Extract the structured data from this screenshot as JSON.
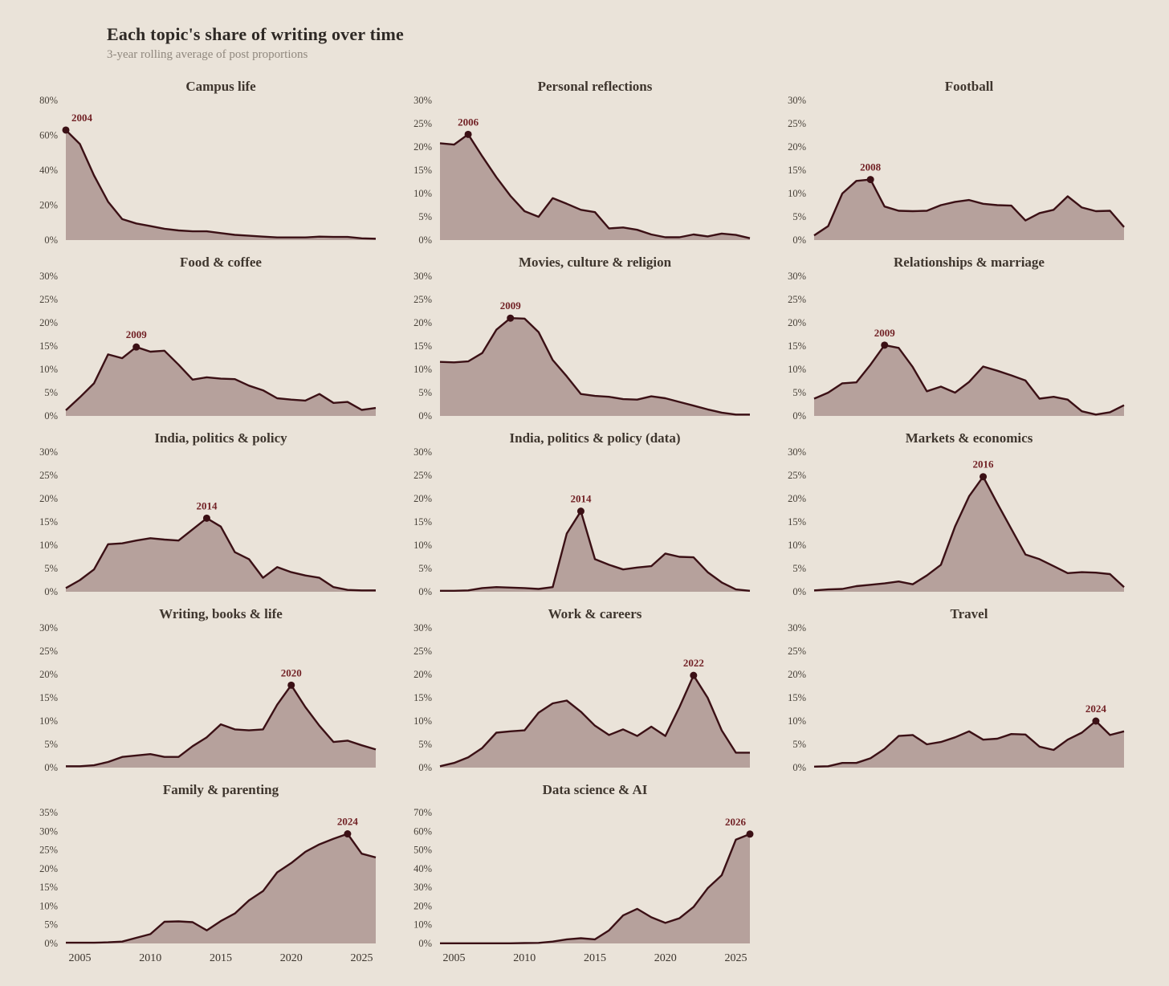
{
  "page": {
    "title": "Each topic's share of writing over time",
    "subtitle": "3-year rolling average of post proportions"
  },
  "style": {
    "background": "#eae3d9",
    "area_fill": "#b6a19c",
    "line_color": "#3b1015",
    "peak_dot_color": "#3b1015",
    "peak_label_color": "#722226"
  },
  "axis": {
    "x_start_year": 2004,
    "x_end_year": 2026,
    "x_tick_labels": [
      2005,
      2010,
      2015,
      2020,
      2025
    ],
    "y_unit": "%"
  },
  "chart_data": [
    {
      "type": "area",
      "title": "Campus life",
      "ylim": [
        0,
        80
      ],
      "yticks": [
        0,
        20,
        40,
        60,
        80
      ],
      "peak": {
        "year": 2004,
        "label": "2004",
        "value": 63
      },
      "values": [
        63,
        55,
        37,
        22,
        12,
        9.5,
        8,
        6.5,
        5.5,
        5,
        5,
        4,
        3,
        2.5,
        2,
        1.5,
        1.5,
        1.5,
        2,
        1.8,
        1.8,
        1,
        0.8
      ],
      "show_x_labels": false
    },
    {
      "type": "area",
      "title": "Personal reflections",
      "ylim": [
        0,
        30
      ],
      "yticks": [
        0,
        5,
        10,
        15,
        20,
        25,
        30
      ],
      "peak": {
        "year": 2006,
        "label": "2006",
        "value": 22.7
      },
      "values": [
        20.8,
        20.5,
        22.7,
        18,
        13.5,
        9.5,
        6.2,
        5,
        9,
        7.8,
        6.5,
        6,
        2.5,
        2.7,
        2.2,
        1.2,
        0.6,
        0.6,
        1.2,
        0.8,
        1.4,
        1.1,
        0.4
      ],
      "show_x_labels": false
    },
    {
      "type": "area",
      "title": "Football",
      "ylim": [
        0,
        30
      ],
      "yticks": [
        0,
        5,
        10,
        15,
        20,
        25,
        30
      ],
      "peak": {
        "year": 2008,
        "label": "2008",
        "value": 13
      },
      "values": [
        1,
        3,
        10,
        12.7,
        13,
        7.2,
        6.3,
        6.2,
        6.3,
        7.5,
        8.2,
        8.6,
        7.8,
        7.5,
        7.4,
        4.2,
        5.8,
        6.5,
        9.4,
        7,
        6.2,
        6.3,
        2.8
      ],
      "show_x_labels": false
    },
    {
      "type": "area",
      "title": "Food & coffee",
      "ylim": [
        0,
        30
      ],
      "yticks": [
        0,
        5,
        10,
        15,
        20,
        25,
        30
      ],
      "peak": {
        "year": 2009,
        "label": "2009",
        "value": 14.8
      },
      "values": [
        1.2,
        4,
        7,
        13.2,
        12.4,
        14.8,
        13.8,
        14,
        11,
        7.8,
        8.3,
        8,
        7.9,
        6.5,
        5.5,
        3.8,
        3.5,
        3.3,
        4.7,
        2.8,
        3,
        1.3,
        1.7
      ],
      "show_x_labels": false
    },
    {
      "type": "area",
      "title": "Movies, culture & religion",
      "ylim": [
        0,
        30
      ],
      "yticks": [
        0,
        5,
        10,
        15,
        20,
        25,
        30
      ],
      "peak": {
        "year": 2009,
        "label": "2009",
        "value": 21
      },
      "values": [
        11.6,
        11.5,
        11.7,
        13.5,
        18.5,
        21,
        20.9,
        18,
        12,
        8.5,
        4.7,
        4.3,
        4.1,
        3.6,
        3.5,
        4.2,
        3.8,
        3,
        2.2,
        1.4,
        0.7,
        0.3,
        0.3
      ],
      "show_x_labels": false
    },
    {
      "type": "area",
      "title": "Relationships & marriage",
      "ylim": [
        0,
        30
      ],
      "yticks": [
        0,
        5,
        10,
        15,
        20,
        25,
        30
      ],
      "peak": {
        "year": 2009,
        "label": "2009",
        "value": 15.2
      },
      "values": [
        3.7,
        5,
        7,
        7.2,
        11,
        15.2,
        14.6,
        10.5,
        5.3,
        6.3,
        5,
        7.3,
        10.6,
        9.7,
        8.7,
        7.6,
        3.7,
        4.1,
        3.5,
        1,
        0.3,
        0.8,
        2.3
      ],
      "show_x_labels": false
    },
    {
      "type": "area",
      "title": "India, politics & policy",
      "ylim": [
        0,
        30
      ],
      "yticks": [
        0,
        5,
        10,
        15,
        20,
        25,
        30
      ],
      "peak": {
        "year": 2014,
        "label": "2014",
        "value": 15.8
      },
      "values": [
        0.8,
        2.5,
        4.8,
        10.2,
        10.4,
        11,
        11.5,
        11.2,
        11,
        13.4,
        15.8,
        14,
        8.5,
        7,
        3,
        5.3,
        4.2,
        3.5,
        3,
        1,
        0.4,
        0.3,
        0.3
      ],
      "show_x_labels": false
    },
    {
      "type": "area",
      "title": "India, politics & policy (data)",
      "ylim": [
        0,
        30
      ],
      "yticks": [
        0,
        5,
        10,
        15,
        20,
        25,
        30
      ],
      "peak": {
        "year": 2014,
        "label": "2014",
        "value": 17.3
      },
      "values": [
        0.2,
        0.2,
        0.3,
        0.8,
        1,
        0.9,
        0.8,
        0.6,
        1,
        12.5,
        17.3,
        7,
        5.8,
        4.8,
        5.2,
        5.5,
        8.2,
        7.5,
        7.4,
        4.2,
        2,
        0.5,
        0.2
      ],
      "show_x_labels": false
    },
    {
      "type": "area",
      "title": "Markets & economics",
      "ylim": [
        0,
        30
      ],
      "yticks": [
        0,
        5,
        10,
        15,
        20,
        25,
        30
      ],
      "peak": {
        "year": 2016,
        "label": "2016",
        "value": 24.7
      },
      "values": [
        0.3,
        0.5,
        0.6,
        1.2,
        1.5,
        1.8,
        2.2,
        1.6,
        3.5,
        5.8,
        14,
        20.5,
        24.7,
        19,
        13.5,
        8,
        7,
        5.5,
        4,
        4.2,
        4.1,
        3.8,
        1
      ],
      "show_x_labels": false
    },
    {
      "type": "area",
      "title": "Writing, books & life",
      "ylim": [
        0,
        30
      ],
      "yticks": [
        0,
        5,
        10,
        15,
        20,
        25,
        30
      ],
      "peak": {
        "year": 2020,
        "label": "2020",
        "value": 17.7
      },
      "values": [
        0.3,
        0.3,
        0.5,
        1.2,
        2.3,
        2.6,
        2.9,
        2.3,
        2.3,
        4.6,
        6.5,
        9.3,
        8.2,
        8,
        8.2,
        13.5,
        17.7,
        13,
        9,
        5.5,
        5.8,
        4.8,
        3.9
      ],
      "show_x_labels": false
    },
    {
      "type": "area",
      "title": "Work & careers",
      "ylim": [
        0,
        30
      ],
      "yticks": [
        0,
        5,
        10,
        15,
        20,
        25,
        30
      ],
      "peak": {
        "year": 2022,
        "label": "2022",
        "value": 19.8
      },
      "values": [
        0.3,
        1,
        2.2,
        4.2,
        7.5,
        7.8,
        8,
        11.8,
        13.8,
        14.4,
        12,
        9,
        7,
        8.2,
        6.8,
        8.8,
        6.8,
        13,
        19.8,
        15,
        8,
        3.2,
        3.2
      ],
      "show_x_labels": false
    },
    {
      "type": "area",
      "title": "Travel",
      "ylim": [
        0,
        30
      ],
      "yticks": [
        0,
        5,
        10,
        15,
        20,
        25,
        30
      ],
      "peak": {
        "year": 2024,
        "label": "2024",
        "value": 10
      },
      "values": [
        0.2,
        0.3,
        1,
        1,
        2,
        4,
        6.8,
        7,
        5,
        5.5,
        6.5,
        7.8,
        6,
        6.2,
        7.2,
        7.1,
        4.5,
        3.8,
        6,
        7.5,
        10,
        7,
        7.8
      ],
      "show_x_labels": false
    },
    {
      "type": "area",
      "title": "Family & parenting",
      "ylim": [
        0,
        35
      ],
      "yticks": [
        0,
        5,
        10,
        15,
        20,
        25,
        30,
        35
      ],
      "peak": {
        "year": 2024,
        "label": "2024",
        "value": 29.3
      },
      "values": [
        0.2,
        0.2,
        0.2,
        0.3,
        0.5,
        1.5,
        2.5,
        5.8,
        5.9,
        5.7,
        3.5,
        6,
        8,
        11.5,
        14,
        19,
        21.5,
        24.5,
        26.5,
        28,
        29.3,
        24,
        23
      ],
      "show_x_labels": true
    },
    {
      "type": "area",
      "title": "Data science & AI",
      "ylim": [
        0,
        70
      ],
      "yticks": [
        0,
        10,
        20,
        30,
        40,
        50,
        60,
        70
      ],
      "peak": {
        "year": 2026,
        "label": "2026",
        "value": 58.5
      },
      "values": [
        0.1,
        0.1,
        0.1,
        0.1,
        0.1,
        0.1,
        0.2,
        0.3,
        1,
        2.2,
        2.8,
        2.2,
        7,
        15,
        18.5,
        14,
        11,
        13.5,
        19.5,
        29.5,
        36.5,
        55.5,
        58.5
      ],
      "show_x_labels": true
    }
  ]
}
